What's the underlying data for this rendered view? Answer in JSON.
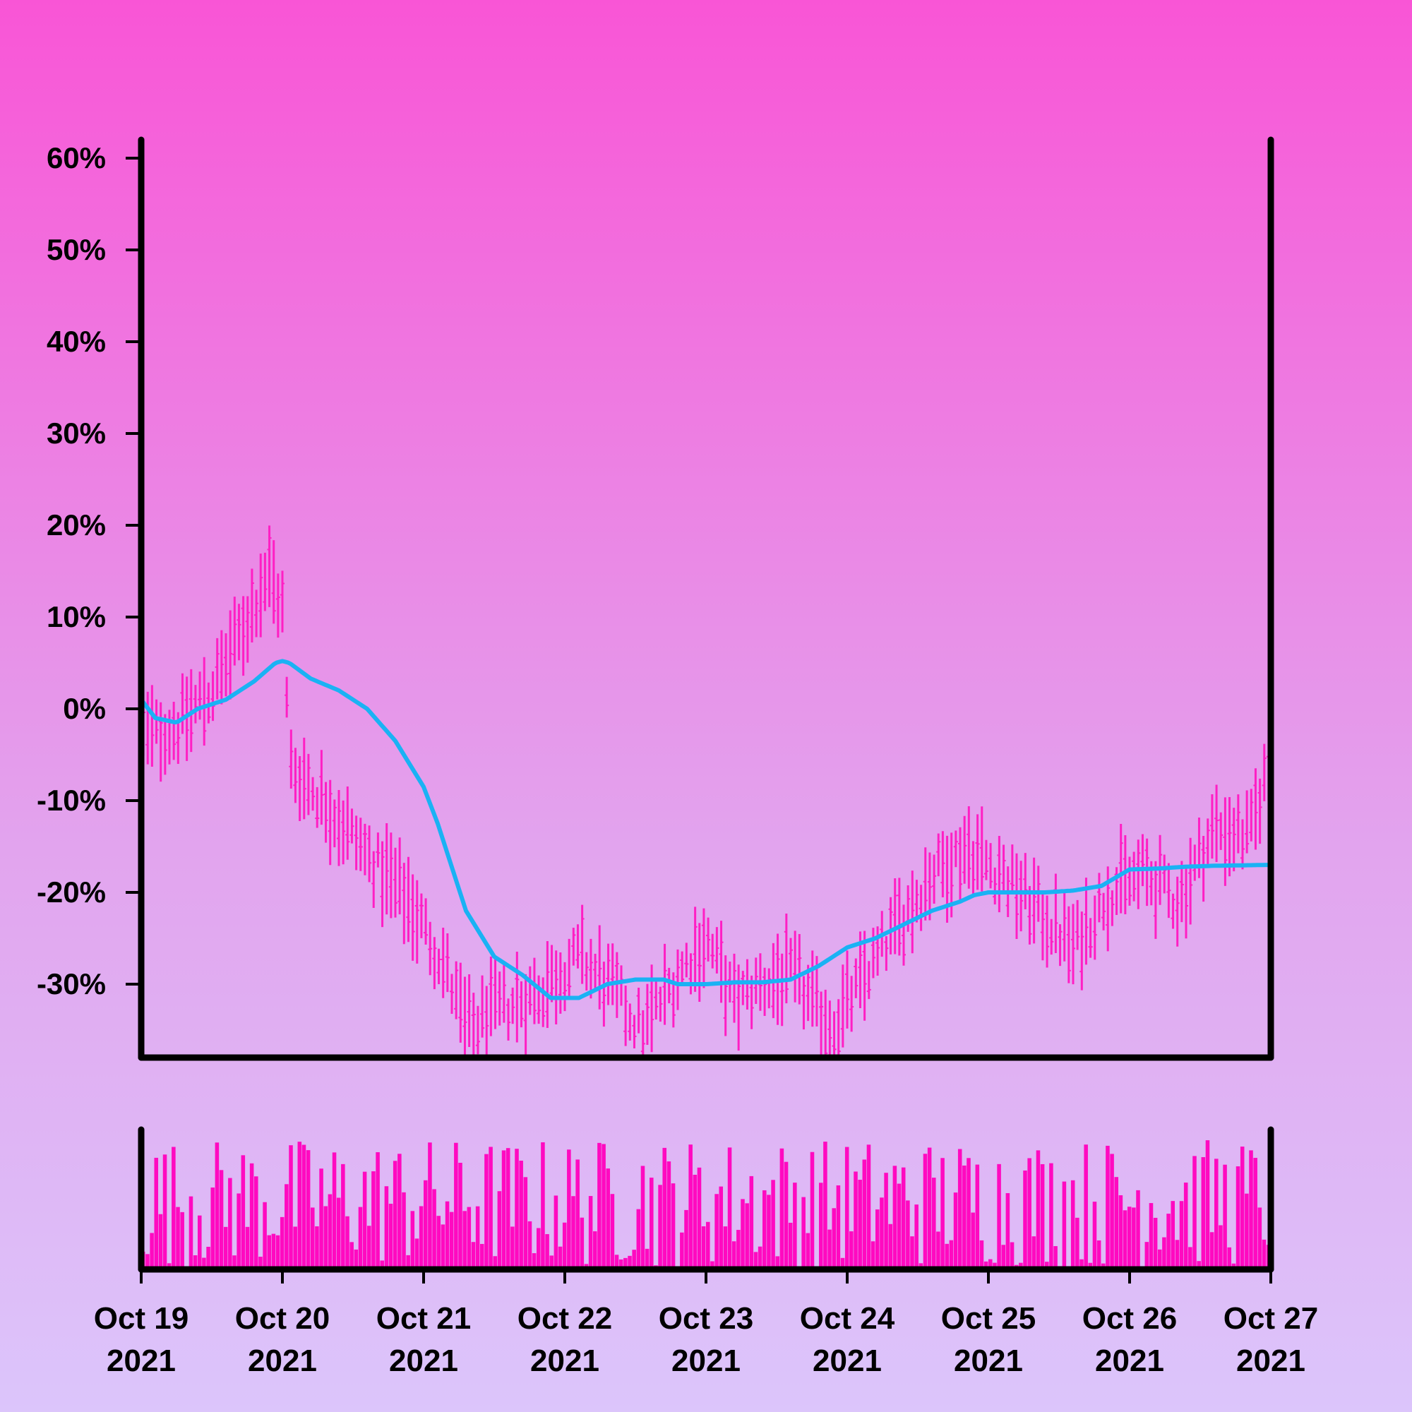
{
  "colors": {
    "background_top": "#f955d6",
    "background_bottom": "#dcc5fb",
    "price_bars": "#ff1fc4",
    "moving_average": "#1ab2f4",
    "volume_bars": "#ff0ac0",
    "axis": "#000000"
  },
  "chart_data": [
    {
      "type": "ohlc",
      "title": "",
      "xlabel": "",
      "ylabel": "",
      "x_range": [
        "2021-10-19",
        "2021-10-27"
      ],
      "ylim": [
        -38,
        62
      ],
      "y_ticks": [
        -30,
        -20,
        -10,
        0,
        10,
        20,
        30,
        40,
        50,
        60
      ],
      "y_tick_labels": [
        "-30%",
        "-20%",
        "-10%",
        "0%",
        "10%",
        "20%",
        "30%",
        "40%",
        "50%",
        "60%"
      ],
      "x_ticks": [
        "2021-10-19",
        "2021-10-20",
        "2021-10-21",
        "2021-10-22",
        "2021-10-23",
        "2021-10-24",
        "2021-10-25",
        "2021-10-26",
        "2021-10-27"
      ],
      "x_tick_labels": [
        [
          "Oct 19",
          "2021"
        ],
        [
          "Oct 20",
          "2021"
        ],
        [
          "Oct 21",
          "2021"
        ],
        [
          "Oct 22",
          "2021"
        ],
        [
          "Oct 23",
          "2021"
        ],
        [
          "Oct 24",
          "2021"
        ],
        [
          "Oct 25",
          "2021"
        ],
        [
          "Oct 26",
          "2021"
        ],
        [
          "Oct 27",
          "2021"
        ]
      ],
      "grid": false,
      "price_path_days": [
        0,
        0.25,
        0.5,
        0.7,
        0.9,
        1.0,
        1.05,
        1.3,
        1.6,
        1.9,
        2.15,
        2.3,
        2.5,
        2.8,
        3.1,
        3.3,
        3.55,
        3.8,
        4.0,
        4.2,
        4.4,
        4.6,
        4.9,
        5.05,
        5.3,
        5.6,
        5.85,
        6.1,
        6.35,
        6.6,
        6.85,
        7.1,
        7.35,
        7.6,
        7.85,
        8.0
      ],
      "price_path_values": [
        -3,
        -2,
        2,
        8,
        15,
        11,
        -6,
        -10,
        -16,
        -21,
        -28,
        -35,
        -33,
        -31,
        -27,
        -30,
        -35,
        -29,
        -25,
        -32,
        -30,
        -29,
        -35,
        -31,
        -25,
        -18,
        -15,
        -18,
        -22,
        -26,
        -20,
        -18,
        -21,
        -13,
        -14,
        -5
      ],
      "moving_average": {
        "x": [
          0,
          0.1,
          0.25,
          0.4,
          0.6,
          0.8,
          0.95,
          1.0,
          1.05,
          1.2,
          1.4,
          1.6,
          1.8,
          2.0,
          2.1,
          2.3,
          2.5,
          2.7,
          2.9,
          3.1,
          3.3,
          3.5,
          3.7,
          3.8,
          4.0,
          4.2,
          4.4,
          4.6,
          4.8,
          5.0,
          5.2,
          5.4,
          5.6,
          5.8,
          5.9,
          6.0,
          6.2,
          6.4,
          6.6,
          6.8,
          7.0,
          7.2,
          7.4,
          7.6,
          7.8,
          8.0
        ],
        "y": [
          1,
          -1,
          -1.5,
          0,
          1,
          3,
          5,
          5.2,
          5,
          3.3,
          2,
          0,
          -3.5,
          -8.5,
          -12.5,
          -22,
          -27,
          -29,
          -31.5,
          -31.5,
          -30,
          -29.5,
          -29.5,
          -30,
          -30,
          -29.8,
          -29.8,
          -29.5,
          -28,
          -26,
          -25,
          -23.5,
          -22,
          -21,
          -20.3,
          -20,
          -20,
          -20,
          -19.8,
          -19.3,
          -17.5,
          -17.4,
          -17.2,
          -17.1,
          -17.05,
          -17
        ]
      }
    },
    {
      "type": "bar",
      "title": "",
      "xlabel": "",
      "ylabel": "",
      "x_range": [
        "2021-10-19",
        "2021-10-27"
      ],
      "description_values": "volume relative to max (0-1), one bar per candle",
      "volume_seed": 7
    }
  ]
}
